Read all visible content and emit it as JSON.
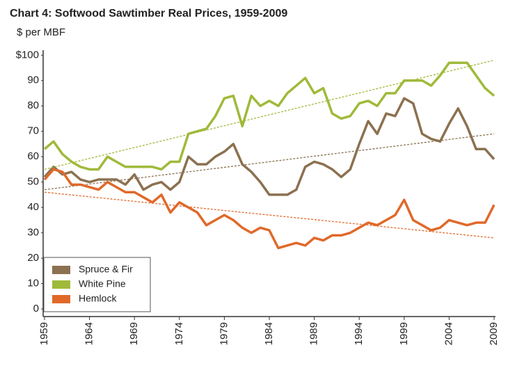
{
  "chart_data": {
    "type": "line",
    "title": "Chart 4: Softwood Sawtimber Real Prices, 1959-2009",
    "subtitle": "$ per MBF",
    "x": [
      1959,
      1960,
      1961,
      1962,
      1963,
      1964,
      1965,
      1966,
      1967,
      1968,
      1969,
      1970,
      1971,
      1972,
      1973,
      1974,
      1975,
      1976,
      1977,
      1978,
      1979,
      1980,
      1981,
      1982,
      1983,
      1984,
      1985,
      1986,
      1987,
      1988,
      1989,
      1990,
      1991,
      1992,
      1993,
      1994,
      1995,
      1996,
      1997,
      1998,
      1999,
      2000,
      2001,
      2002,
      2003,
      2004,
      2005,
      2006,
      2007,
      2008,
      2009
    ],
    "series": [
      {
        "name": "Spruce & Fir",
        "color": "#8b7150",
        "trend": [
          47,
          69
        ],
        "values": [
          52,
          56,
          53,
          54,
          51,
          50,
          51,
          51,
          51,
          49,
          53,
          47,
          49,
          50,
          47,
          50,
          60,
          57,
          57,
          60,
          62,
          65,
          57,
          54,
          50,
          45,
          45,
          45,
          47,
          56,
          58,
          57,
          55,
          52,
          55,
          65,
          74,
          69,
          77,
          76,
          83,
          81,
          69,
          67,
          66,
          73,
          79,
          72,
          63,
          63,
          59
        ]
      },
      {
        "name": "White Pine",
        "color": "#9fba3a",
        "trend": [
          55,
          98
        ],
        "values": [
          63,
          66,
          61,
          58,
          56,
          55,
          55,
          60,
          58,
          56,
          56,
          56,
          56,
          55,
          58,
          58,
          69,
          70,
          71,
          76,
          83,
          84,
          72,
          84,
          80,
          82,
          80,
          85,
          88,
          91,
          85,
          87,
          77,
          75,
          76,
          81,
          82,
          80,
          85,
          85,
          90,
          90,
          90,
          88,
          92,
          97,
          97,
          97,
          92,
          87,
          84
        ]
      },
      {
        "name": "Hemlock",
        "color": "#e0692a",
        "trend": [
          46,
          28
        ],
        "values": [
          51,
          55,
          54,
          49,
          49,
          48,
          47,
          50,
          48,
          46,
          46,
          44,
          42,
          45,
          38,
          42,
          40,
          38,
          33,
          35,
          37,
          35,
          32,
          30,
          32,
          31,
          24,
          25,
          26,
          25,
          28,
          27,
          29,
          29,
          30,
          32,
          34,
          33,
          35,
          37,
          43,
          35,
          33,
          31,
          32,
          35,
          34,
          33,
          34,
          34,
          41
        ]
      }
    ],
    "xlim": [
      1959,
      2009
    ],
    "xticks": [
      1959,
      1964,
      1969,
      1974,
      1979,
      1984,
      1989,
      1994,
      1999,
      2004,
      2009
    ],
    "ylim": [
      -3,
      102
    ],
    "yticks": [
      0,
      10,
      20,
      30,
      40,
      50,
      60,
      70,
      80,
      90,
      {
        "value": 100,
        "label": "$100"
      }
    ],
    "legend": "lower-left"
  }
}
